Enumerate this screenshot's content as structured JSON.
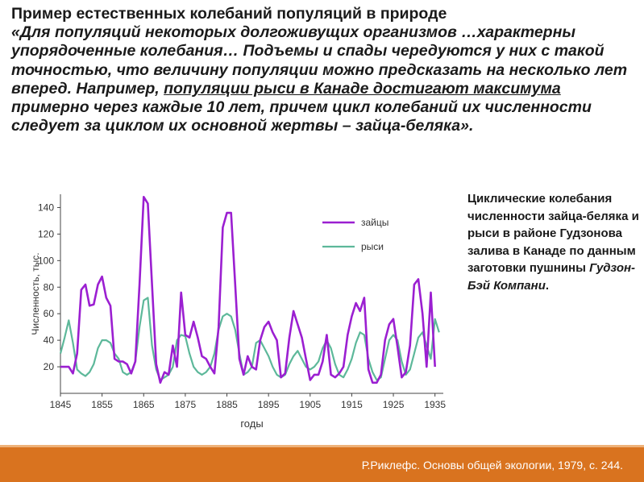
{
  "heading": {
    "title": "Пример естественных колебаний популяций в природе",
    "quote_part1": "«Для популяций некоторых долгоживущих организмов …характерны упорядоченные колебания… Подъемы и спады чередуются у них  с такой точностью, что величину популяции можно предсказать на несколько лет вперед. Например, ",
    "quote_underlined": "популяции рыси в Канаде достигают максимума ",
    "quote_part2": "примерно через каждые 10 лет, причем цикл колебаний их численности следует за циклом их основной жертвы – зайца-беляка»."
  },
  "caption": {
    "text": "Циклические колебания численности зайца-беляка и рыси в районе Гудзонова залива в Канаде по данным заготовки пушнины",
    "company": "Гудзон-Бэй Компани",
    "end": "."
  },
  "footer": {
    "citation": "Р.Риклефс. Основы общей экологии, 1979, с. 244."
  },
  "colors": {
    "hare": "#9b1fd1",
    "lynx": "#5db89a",
    "footer_bg": "#d9731f"
  },
  "chart_data": {
    "type": "line",
    "xlabel": "годы",
    "ylabel": "Численность, тыс.",
    "xlim": [
      1845,
      1937
    ],
    "ylim": [
      0,
      150
    ],
    "xticks": [
      1845,
      1855,
      1865,
      1875,
      1885,
      1895,
      1905,
      1915,
      1925,
      1935
    ],
    "yticks": [
      20,
      40,
      60,
      80,
      100,
      120,
      140
    ],
    "legend_position": "top-right",
    "series": [
      {
        "name": "зайцы",
        "x": [
          1845,
          1846,
          1847,
          1848,
          1849,
          1850,
          1851,
          1852,
          1853,
          1854,
          1855,
          1856,
          1857,
          1858,
          1859,
          1860,
          1861,
          1862,
          1863,
          1864,
          1865,
          1866,
          1867,
          1868,
          1869,
          1870,
          1871,
          1872,
          1873,
          1874,
          1875,
          1876,
          1877,
          1878,
          1879,
          1880,
          1881,
          1882,
          1883,
          1884,
          1885,
          1886,
          1887,
          1888,
          1889,
          1890,
          1891,
          1892,
          1893,
          1894,
          1895,
          1896,
          1897,
          1898,
          1899,
          1900,
          1901,
          1902,
          1903,
          1904,
          1905,
          1906,
          1907,
          1908,
          1909,
          1910,
          1911,
          1912,
          1913,
          1914,
          1915,
          1916,
          1917,
          1918,
          1919,
          1920,
          1921,
          1922,
          1923,
          1924,
          1925,
          1926,
          1927,
          1928,
          1929,
          1930,
          1931,
          1932,
          1933,
          1934,
          1935
        ],
        "values": [
          20,
          20,
          20,
          15,
          30,
          78,
          82,
          66,
          67,
          82,
          88,
          72,
          66,
          26,
          24,
          24,
          22,
          15,
          24,
          82,
          148,
          143,
          82,
          22,
          8,
          16,
          14,
          36,
          20,
          76,
          44,
          42,
          54,
          42,
          28,
          26,
          20,
          15,
          50,
          125,
          136,
          136,
          82,
          26,
          14,
          28,
          20,
          18,
          40,
          50,
          54,
          46,
          40,
          12,
          15,
          42,
          62,
          52,
          42,
          26,
          10,
          14,
          14,
          24,
          44,
          14,
          12,
          15,
          20,
          44,
          58,
          68,
          62,
          72,
          18,
          8,
          8,
          14,
          40,
          52,
          56,
          35,
          12,
          16,
          36,
          82,
          86,
          60,
          20,
          76,
          20
        ]
      },
      {
        "name": "рыси",
        "x": [
          1845,
          1846,
          1847,
          1848,
          1849,
          1850,
          1851,
          1852,
          1853,
          1854,
          1855,
          1856,
          1857,
          1858,
          1859,
          1860,
          1861,
          1862,
          1863,
          1864,
          1865,
          1866,
          1867,
          1868,
          1869,
          1870,
          1871,
          1872,
          1873,
          1874,
          1875,
          1876,
          1877,
          1878,
          1879,
          1880,
          1881,
          1882,
          1883,
          1884,
          1885,
          1886,
          1887,
          1888,
          1889,
          1890,
          1891,
          1892,
          1893,
          1894,
          1895,
          1896,
          1897,
          1898,
          1899,
          1900,
          1901,
          1902,
          1903,
          1904,
          1905,
          1906,
          1907,
          1908,
          1909,
          1910,
          1911,
          1912,
          1913,
          1914,
          1915,
          1916,
          1917,
          1918,
          1919,
          1920,
          1921,
          1922,
          1923,
          1924,
          1925,
          1926,
          1927,
          1928,
          1929,
          1930,
          1931,
          1932,
          1933,
          1934,
          1935,
          1936
        ],
        "values": [
          30,
          42,
          55,
          38,
          18,
          15,
          13,
          16,
          22,
          34,
          40,
          40,
          38,
          30,
          26,
          16,
          14,
          16,
          24,
          50,
          70,
          72,
          36,
          18,
          10,
          12,
          14,
          20,
          40,
          44,
          43,
          30,
          20,
          16,
          14,
          16,
          20,
          30,
          48,
          58,
          60,
          58,
          48,
          30,
          14,
          16,
          20,
          38,
          40,
          34,
          28,
          20,
          14,
          12,
          14,
          22,
          28,
          32,
          26,
          20,
          18,
          20,
          24,
          34,
          40,
          34,
          22,
          14,
          12,
          18,
          26,
          38,
          46,
          44,
          26,
          16,
          10,
          12,
          26,
          40,
          44,
          40,
          24,
          14,
          18,
          30,
          42,
          46,
          36,
          26,
          56,
          46
        ]
      }
    ]
  }
}
